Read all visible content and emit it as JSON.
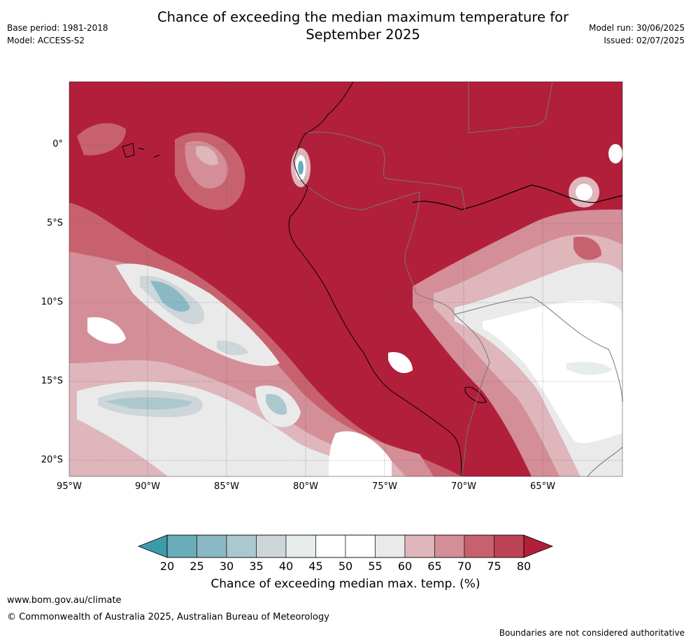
{
  "title": "Chance of exceeding the median maximum temperature for September 2025",
  "title_lines": [
    "Chance of exceeding the median maximum temperature for",
    "September 2025"
  ],
  "base_period": "Base period: 1981-2018",
  "model": "Model: ACCESS-S2",
  "model_run": "Model run: 30/06/2025",
  "issued": "Issued: 02/07/2025",
  "map": {
    "lon_range": [
      -95,
      -60
    ],
    "lat_range": [
      -21,
      4
    ],
    "lat_labels": [
      "0°",
      "5°S",
      "10°S",
      "15°S",
      "20°S"
    ],
    "lon_labels": [
      "95°W",
      "90°W",
      "85°W",
      "80°W",
      "75°W",
      "70°W",
      "65°W"
    ]
  },
  "colorbar": {
    "levels": [
      "20",
      "25",
      "30",
      "35",
      "40",
      "45",
      "50",
      "55",
      "60",
      "65",
      "70",
      "75",
      "80"
    ],
    "colors": [
      "#3d9aab",
      "#6aacba",
      "#8ab9c5",
      "#abc8ce",
      "#cdd6d9",
      "#e7eced",
      "#ffffff",
      "#ffffff",
      "#eaeaea",
      "#deb6bc",
      "#d38e98",
      "#c8616e",
      "#bc4454",
      "#b21f3a"
    ],
    "title": "Chance of exceeding median max. temp. (%)"
  },
  "footer": {
    "url": "www.bom.gov.au/climate",
    "copyright": "© Commonwealth of Australia 2025, Australian Bureau of Meteorology",
    "disclaimer": "Boundaries are not considered authoritative"
  }
}
